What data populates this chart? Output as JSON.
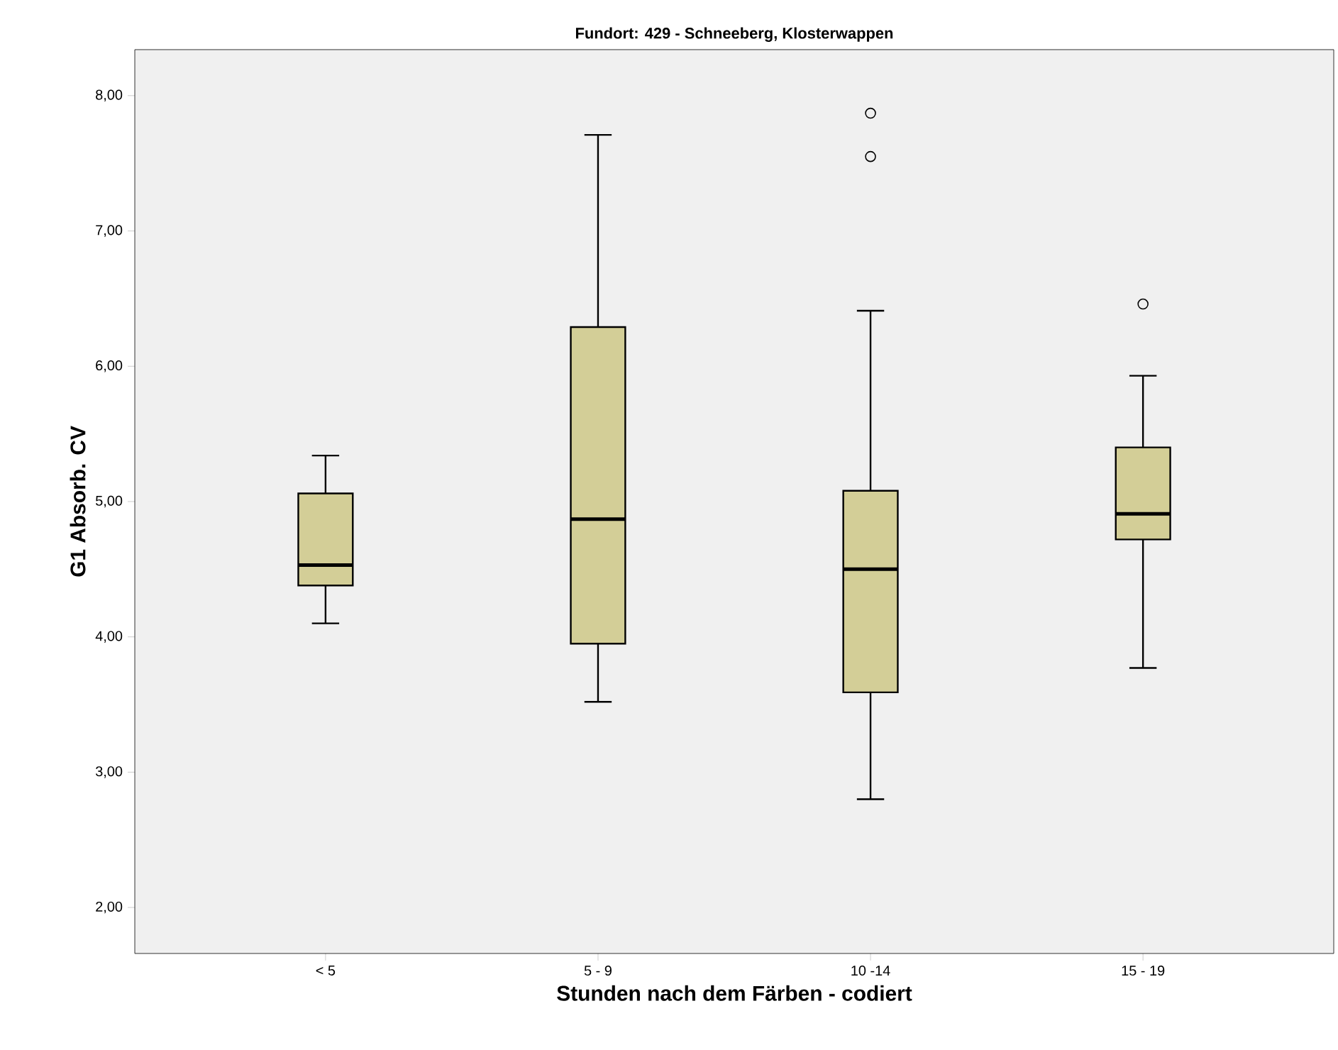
{
  "chart_data": {
    "type": "box",
    "title": "Fundort: 429 - Schneeberg, Klosterwappen",
    "xlabel": "Stunden nach dem Färben - codiert",
    "ylabel": "G1 Absorb. CV",
    "categories": [
      "< 5",
      "5 - 9",
      "10 -14",
      "15 - 19"
    ],
    "color": "#d3ce97",
    "boxes": [
      {
        "low": 4.1,
        "q1": 4.38,
        "median": 4.53,
        "q3": 5.06,
        "high": 5.34
      },
      {
        "low": 3.52,
        "q1": 3.95,
        "median": 4.87,
        "q3": 6.29,
        "high": 7.71
      },
      {
        "low": 2.8,
        "q1": 3.59,
        "median": 4.5,
        "q3": 5.08,
        "high": 6.41,
        "outliers": [
          7.55,
          7.87
        ]
      },
      {
        "low": 3.77,
        "q1": 4.72,
        "median": 4.91,
        "q3": 5.4,
        "high": 5.93,
        "outliers": [
          6.46
        ]
      }
    ],
    "ylim": [
      1.66,
      8.34
    ],
    "yticks": [
      {
        "value": 2,
        "label": "2,00"
      },
      {
        "value": 3,
        "label": "3,00"
      },
      {
        "value": 4,
        "label": "4,00"
      },
      {
        "value": 5,
        "label": "5,00"
      },
      {
        "value": 6,
        "label": "6,00"
      },
      {
        "value": 7,
        "label": "7,00"
      },
      {
        "value": 8,
        "label": "8,00"
      }
    ]
  }
}
